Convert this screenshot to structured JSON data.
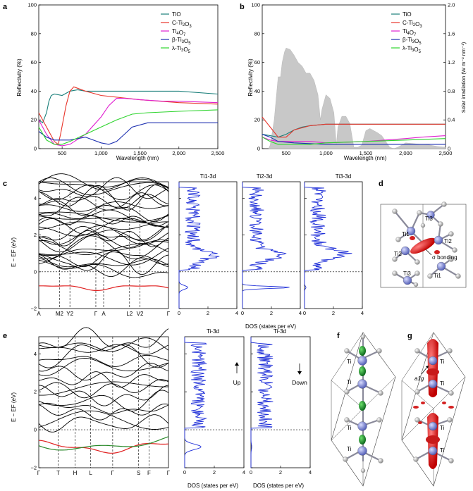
{
  "panel_a": {
    "letter": "a",
    "ylabel": "Reflectivity (%)",
    "xlabel": "Wavelength (nm)",
    "yticks": [
      "0",
      "20",
      "40",
      "60",
      "80",
      "100"
    ],
    "xticks": [
      "500",
      "1,000",
      "1,500",
      "2,000",
      "2,500"
    ],
    "legend": [
      "TiO",
      "C-Ti2O3",
      "Ti4O7",
      "β-Ti3O5",
      "λ-Ti3O5"
    ]
  },
  "panel_b": {
    "letter": "b",
    "ylabel": "Reflectivity (%)",
    "ylabel_right": "Solar irradiation (W m⁻² nm⁻¹)",
    "xlabel": "Wavelength (nm)",
    "yticks": [
      "0",
      "20",
      "40",
      "60",
      "80",
      "100"
    ],
    "yticks_right": [
      "0",
      "0.4",
      "0.8",
      "1.2",
      "1.6",
      "2.0"
    ],
    "xticks": [
      "500",
      "1,000",
      "1,500",
      "2,000",
      "2,500"
    ],
    "legend": [
      "TiO",
      "C-Ti2O3",
      "Ti4O7",
      "β-Ti3O5",
      "λ-Ti3O5"
    ]
  },
  "panel_c": {
    "letter": "c",
    "ylabel": "E − EF (eV)",
    "yticks": [
      "4",
      "2",
      "0",
      "−2"
    ],
    "kpoints": [
      "A",
      "M2",
      "Y2",
      "Γ",
      "A",
      "L2",
      "V2",
      "Γ"
    ],
    "dos_titles": [
      "Ti1-3d",
      "Ti2-3d",
      "Ti3-3d"
    ],
    "dos_xticks": [
      "0",
      "2",
      "4"
    ],
    "dos_xlabel": "DOS (states per eV)"
  },
  "panel_d": {
    "letter": "d",
    "labels": [
      "Ti1",
      "Ti3",
      "Ti2",
      "Ti2",
      "σ bonding",
      "Ti3",
      "Ti1"
    ]
  },
  "panel_e": {
    "letter": "e",
    "ylabel": "E − EF (eV)",
    "yticks": [
      "4",
      "2",
      "0",
      "−2"
    ],
    "kpoints": [
      "Γ",
      "T",
      "H",
      "L",
      "Γ",
      "S",
      "F",
      "Γ"
    ],
    "dos_titles": [
      "Ti-3d",
      "Ti-3d"
    ],
    "dos_xticks": [
      "0",
      "2",
      "4"
    ],
    "dos_xlabel": "DOS (states per eV)",
    "spin_up": "Up",
    "spin_down": "Down"
  },
  "panel_f": {
    "letter": "f",
    "labels": [
      "Ti",
      "Ti",
      "Ti",
      "Ti"
    ]
  },
  "panel_g": {
    "letter": "g",
    "labels": [
      "a1g",
      "Ti",
      "Ti",
      "Ti",
      "Ti"
    ]
  },
  "colors": {
    "TiO": "#1a7f7a",
    "C-Ti2O3": "#e8352b",
    "Ti4O7": "#e020d0",
    "beta-Ti3O5": "#1c2fb0",
    "lambda-Ti3O5": "#2ed42e",
    "solar": "#c8c8c8",
    "dos": "#1f2fd8",
    "band_red": "#e02020",
    "band_green": "#2a8a2a"
  },
  "chart_data": [
    {
      "type": "line",
      "title": "a",
      "xlabel": "Wavelength (nm)",
      "ylabel": "Reflectivity (%)",
      "xlim": [
        200,
        2500
      ],
      "ylim": [
        0,
        100
      ],
      "series": [
        {
          "name": "TiO",
          "x": [
            200,
            250,
            300,
            330,
            360,
            400,
            500,
            600,
            700,
            800,
            900,
            1000,
            1200,
            1500,
            2000,
            2500
          ],
          "values": [
            20,
            18,
            25,
            33,
            37,
            38,
            37,
            40,
            41,
            40,
            40,
            40,
            40,
            40,
            40,
            38
          ]
        },
        {
          "name": "C-Ti2O3",
          "x": [
            200,
            300,
            400,
            450,
            480,
            550,
            600,
            650,
            700,
            800,
            1000,
            1500,
            2000,
            2500
          ],
          "values": [
            25,
            15,
            5,
            3,
            10,
            30,
            40,
            43,
            42,
            40,
            37,
            34,
            32,
            31
          ]
        },
        {
          "name": "Ti4O7",
          "x": [
            200,
            300,
            400,
            500,
            600,
            800,
            1000,
            1100,
            1200,
            1300,
            1500,
            1800,
            2000,
            2500
          ],
          "values": [
            20,
            10,
            3,
            2,
            3,
            10,
            22,
            30,
            35,
            35,
            34,
            33,
            33,
            32
          ]
        },
        {
          "name": "β-Ti3O5",
          "x": [
            200,
            300,
            400,
            600,
            800,
            1000,
            1100,
            1200,
            1300,
            1400,
            1600,
            1800,
            2000,
            2500
          ],
          "values": [
            12,
            8,
            6,
            6,
            8,
            4,
            3,
            5,
            10,
            15,
            18,
            18,
            18,
            18
          ]
        },
        {
          "name": "λ-Ti3O5",
          "x": [
            200,
            300,
            400,
            500,
            600,
            800,
            1000,
            1200,
            1400,
            1600,
            2000,
            2500
          ],
          "values": [
            15,
            6,
            3,
            3,
            5,
            10,
            15,
            20,
            24,
            25,
            26,
            27
          ]
        }
      ]
    },
    {
      "type": "line",
      "title": "b",
      "xlabel": "Wavelength (nm)",
      "ylabel": "Reflectivity (%)",
      "ylabel_right": "Solar irradiation (W m⁻² nm⁻¹)",
      "xlim": [
        200,
        2500
      ],
      "ylim": [
        0,
        100
      ],
      "ylim_right": [
        0,
        2.0
      ],
      "series": [
        {
          "name": "TiO",
          "x": [
            200,
            300,
            400,
            500,
            600,
            700,
            800,
            1000,
            1500,
            2000,
            2500
          ],
          "values": [
            10,
            9,
            8,
            10,
            13,
            15,
            16,
            17,
            17,
            17,
            17
          ]
        },
        {
          "name": "C-Ti2O3",
          "x": [
            200,
            300,
            400,
            500,
            600,
            800,
            1000,
            1500,
            2000,
            2500
          ],
          "values": [
            22,
            15,
            8,
            8,
            13,
            16,
            17,
            17,
            17,
            17
          ]
        },
        {
          "name": "Ti4O7",
          "x": [
            200,
            300,
            400,
            500,
            800,
            1000,
            1500,
            2000,
            2200,
            2500
          ],
          "values": [
            8,
            6,
            5,
            5,
            5,
            4,
            5,
            7,
            8,
            9
          ]
        },
        {
          "name": "β-Ti3O5",
          "x": [
            200,
            300,
            400,
            600,
            1000,
            1500,
            2000,
            2500
          ],
          "values": [
            10,
            8,
            5,
            4,
            3,
            3,
            3,
            3
          ]
        },
        {
          "name": "λ-Ti3O5",
          "x": [
            200,
            300,
            400,
            500,
            800,
            1000,
            1500,
            2000,
            2500
          ],
          "values": [
            8,
            5,
            3,
            3,
            3,
            4,
            5,
            6,
            7
          ]
        },
        {
          "name": "Solar irradiation",
          "axis": "right",
          "x": [
            280,
            300,
            350,
            400,
            430,
            450,
            480,
            500,
            550,
            600,
            650,
            700,
            750,
            800,
            850,
            900,
            930,
            950,
            1000,
            1050,
            1100,
            1130,
            1150,
            1200,
            1250,
            1300,
            1350,
            1400,
            1450,
            1500,
            1550,
            1600,
            1650,
            1700,
            1750,
            1800,
            1850,
            1900,
            2000,
            2100,
            2200,
            2300,
            2400,
            2500
          ],
          "values": [
            0,
            0.05,
            0.4,
            1.0,
            1.0,
            1.2,
            1.35,
            1.4,
            1.38,
            1.3,
            1.2,
            1.15,
            1.05,
            1.05,
            0.95,
            0.75,
            0.4,
            0.55,
            0.75,
            0.7,
            0.5,
            0.05,
            0.3,
            0.45,
            0.45,
            0.35,
            0.02,
            0.02,
            0.05,
            0.25,
            0.28,
            0.25,
            0.22,
            0.18,
            0.1,
            0.02,
            0.0,
            0.02,
            0.08,
            0.07,
            0.06,
            0.05,
            0.03,
            0.02
          ]
        }
      ]
    }
  ]
}
